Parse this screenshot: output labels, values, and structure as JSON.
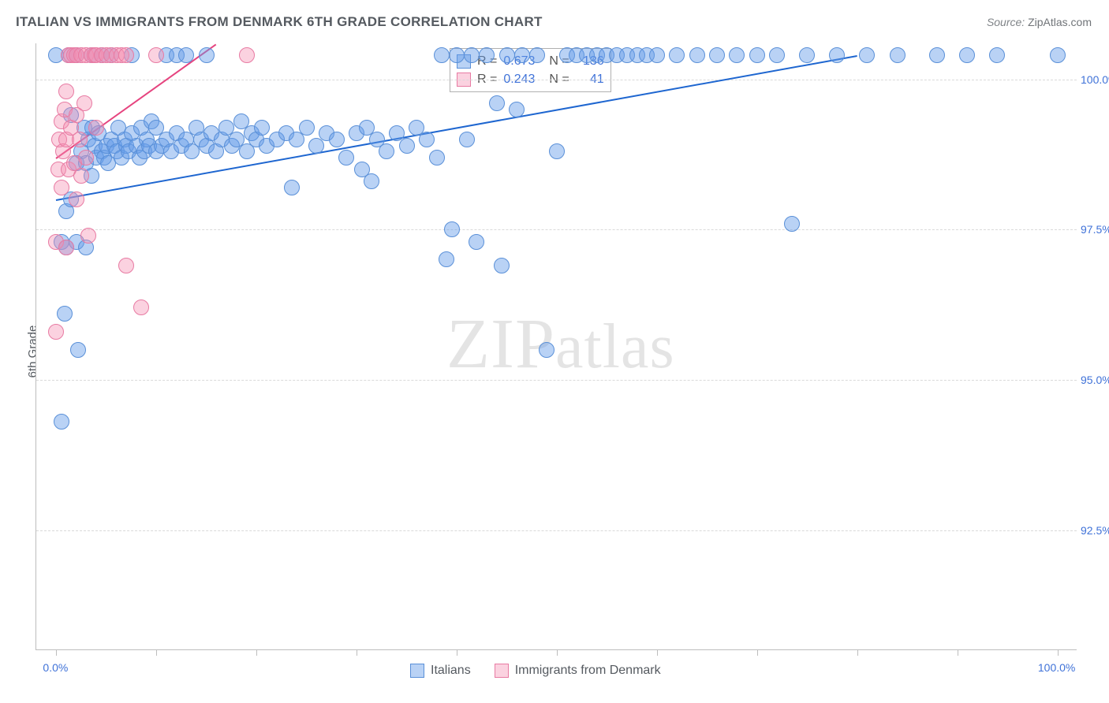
{
  "title": "ITALIAN VS IMMIGRANTS FROM DENMARK 6TH GRADE CORRELATION CHART",
  "source_label": "Source:",
  "source_value": "ZipAtlas.com",
  "y_axis_label": "6th Grade",
  "watermark": "ZIPatlas",
  "colors": {
    "blue_fill": "rgba(99,155,233,0.45)",
    "blue_stroke": "#5a90d8",
    "blue_line": "#1e66d0",
    "pink_fill": "rgba(244,143,177,0.40)",
    "pink_stroke": "#e87ba3",
    "pink_line": "#e6447f",
    "axis_text": "#3f72d8",
    "grid": "#d9d9d9",
    "border": "#bdbdbd",
    "title": "#555a60"
  },
  "chart": {
    "type": "scatter",
    "xlim": [
      -2,
      102
    ],
    "ylim": [
      90.5,
      100.6
    ],
    "point_radius": 10,
    "y_gridlines": [
      92.5,
      95.0,
      97.5,
      100.0
    ],
    "y_tick_labels": [
      "92.5%",
      "95.0%",
      "97.5%",
      "100.0%"
    ],
    "x_ticks": [
      0,
      10,
      20,
      30,
      40,
      50,
      60,
      70,
      80,
      90,
      100
    ],
    "x_tick_labels": {
      "0": "0.0%",
      "100": "100.0%"
    },
    "series": [
      {
        "key": "italians",
        "label": "Italians",
        "color_fill": "rgba(99,155,233,0.45)",
        "color_stroke": "#5a90d8",
        "trend_color": "#1e66d0",
        "R": "0.673",
        "N": "136",
        "trend": {
          "x1": 0,
          "y1": 98.0,
          "x2": 80,
          "y2": 100.4
        },
        "points": [
          [
            0.0,
            100.4
          ],
          [
            0.5,
            94.3
          ],
          [
            0.5,
            97.3
          ],
          [
            0.8,
            96.1
          ],
          [
            1.0,
            97.2
          ],
          [
            1.0,
            97.8
          ],
          [
            1.2,
            100.4
          ],
          [
            1.5,
            98.0
          ],
          [
            1.5,
            99.4
          ],
          [
            2.0,
            97.3
          ],
          [
            2.0,
            98.6
          ],
          [
            2.0,
            100.4
          ],
          [
            2.2,
            95.5
          ],
          [
            2.5,
            98.8
          ],
          [
            2.8,
            99.2
          ],
          [
            3.0,
            97.2
          ],
          [
            3.0,
            98.6
          ],
          [
            3.2,
            99.0
          ],
          [
            3.5,
            98.4
          ],
          [
            3.5,
            100.4
          ],
          [
            3.6,
            99.2
          ],
          [
            3.8,
            98.9
          ],
          [
            4.0,
            98.7
          ],
          [
            4.2,
            99.1
          ],
          [
            4.5,
            98.8
          ],
          [
            4.5,
            100.4
          ],
          [
            4.8,
            98.7
          ],
          [
            5.0,
            98.9
          ],
          [
            5.2,
            98.6
          ],
          [
            5.5,
            99.0
          ],
          [
            5.5,
            100.4
          ],
          [
            5.8,
            98.9
          ],
          [
            6.0,
            98.8
          ],
          [
            6.2,
            99.2
          ],
          [
            6.5,
            98.7
          ],
          [
            6.8,
            99.0
          ],
          [
            7.0,
            98.9
          ],
          [
            7.2,
            98.8
          ],
          [
            7.5,
            99.1
          ],
          [
            7.5,
            100.4
          ],
          [
            8.0,
            98.9
          ],
          [
            8.3,
            98.7
          ],
          [
            8.5,
            99.2
          ],
          [
            8.8,
            98.8
          ],
          [
            9.0,
            99.0
          ],
          [
            9.3,
            98.9
          ],
          [
            9.5,
            99.3
          ],
          [
            10.0,
            98.8
          ],
          [
            10.0,
            99.2
          ],
          [
            10.5,
            98.9
          ],
          [
            11.0,
            99.0
          ],
          [
            11.0,
            100.4
          ],
          [
            11.5,
            98.8
          ],
          [
            12.0,
            99.1
          ],
          [
            12.0,
            100.4
          ],
          [
            12.5,
            98.9
          ],
          [
            13.0,
            99.0
          ],
          [
            13.0,
            100.4
          ],
          [
            13.5,
            98.8
          ],
          [
            14.0,
            99.2
          ],
          [
            14.5,
            99.0
          ],
          [
            15.0,
            98.9
          ],
          [
            15.0,
            100.4
          ],
          [
            15.5,
            99.1
          ],
          [
            16.0,
            98.8
          ],
          [
            16.5,
            99.0
          ],
          [
            17.0,
            99.2
          ],
          [
            17.5,
            98.9
          ],
          [
            18.0,
            99.0
          ],
          [
            18.5,
            99.3
          ],
          [
            19.0,
            98.8
          ],
          [
            19.5,
            99.1
          ],
          [
            20.0,
            99.0
          ],
          [
            20.5,
            99.2
          ],
          [
            21.0,
            98.9
          ],
          [
            22.0,
            99.0
          ],
          [
            23.0,
            99.1
          ],
          [
            23.5,
            98.2
          ],
          [
            24.0,
            99.0
          ],
          [
            25.0,
            99.2
          ],
          [
            26.0,
            98.9
          ],
          [
            27.0,
            99.1
          ],
          [
            28.0,
            99.0
          ],
          [
            29.0,
            98.7
          ],
          [
            30.0,
            99.1
          ],
          [
            30.5,
            98.5
          ],
          [
            31.0,
            99.2
          ],
          [
            31.5,
            98.3
          ],
          [
            32.0,
            99.0
          ],
          [
            33.0,
            98.8
          ],
          [
            34.0,
            99.1
          ],
          [
            35.0,
            98.9
          ],
          [
            36.0,
            99.2
          ],
          [
            37.0,
            99.0
          ],
          [
            38.0,
            98.7
          ],
          [
            38.5,
            100.4
          ],
          [
            39.0,
            97.0
          ],
          [
            39.5,
            97.5
          ],
          [
            40.0,
            100.4
          ],
          [
            41.0,
            99.0
          ],
          [
            41.5,
            100.4
          ],
          [
            42.0,
            97.3
          ],
          [
            43.0,
            100.4
          ],
          [
            44.0,
            99.6
          ],
          [
            44.5,
            96.9
          ],
          [
            45.0,
            100.4
          ],
          [
            46.0,
            99.5
          ],
          [
            46.5,
            100.4
          ],
          [
            48.0,
            100.4
          ],
          [
            49.0,
            95.5
          ],
          [
            50.0,
            98.8
          ],
          [
            51.0,
            100.4
          ],
          [
            52.0,
            100.4
          ],
          [
            53.0,
            100.4
          ],
          [
            54.0,
            100.4
          ],
          [
            55.0,
            100.4
          ],
          [
            56.0,
            100.4
          ],
          [
            57.0,
            100.4
          ],
          [
            58.0,
            100.4
          ],
          [
            59.0,
            100.4
          ],
          [
            60.0,
            100.4
          ],
          [
            62.0,
            100.4
          ],
          [
            64.0,
            100.4
          ],
          [
            66.0,
            100.4
          ],
          [
            68.0,
            100.4
          ],
          [
            70.0,
            100.4
          ],
          [
            72.0,
            100.4
          ],
          [
            73.5,
            97.6
          ],
          [
            75.0,
            100.4
          ],
          [
            78.0,
            100.4
          ],
          [
            81.0,
            100.4
          ],
          [
            84.0,
            100.4
          ],
          [
            88.0,
            100.4
          ],
          [
            91.0,
            100.4
          ],
          [
            94.0,
            100.4
          ],
          [
            100.0,
            100.4
          ]
        ]
      },
      {
        "key": "denmark",
        "label": "Immigrants from Denmark",
        "color_fill": "rgba(244,143,177,0.40)",
        "color_stroke": "#e87ba3",
        "trend_color": "#e6447f",
        "R": "0.243",
        "N": "41",
        "trend": {
          "x1": 0,
          "y1": 98.7,
          "x2": 16,
          "y2": 100.6
        },
        "points": [
          [
            0.0,
            97.3
          ],
          [
            0.0,
            95.8
          ],
          [
            0.2,
            98.5
          ],
          [
            0.3,
            99.0
          ],
          [
            0.5,
            98.2
          ],
          [
            0.5,
            99.3
          ],
          [
            0.7,
            98.8
          ],
          [
            0.8,
            99.5
          ],
          [
            1.0,
            97.2
          ],
          [
            1.0,
            99.0
          ],
          [
            1.0,
            99.8
          ],
          [
            1.2,
            98.5
          ],
          [
            1.2,
            100.4
          ],
          [
            1.5,
            99.2
          ],
          [
            1.5,
            100.4
          ],
          [
            1.8,
            98.6
          ],
          [
            1.8,
            100.4
          ],
          [
            2.0,
            99.4
          ],
          [
            2.0,
            100.4
          ],
          [
            2.0,
            98.0
          ],
          [
            2.3,
            99.0
          ],
          [
            2.5,
            98.4
          ],
          [
            2.5,
            100.4
          ],
          [
            2.8,
            99.6
          ],
          [
            3.0,
            98.7
          ],
          [
            3.0,
            100.4
          ],
          [
            3.2,
            97.4
          ],
          [
            3.5,
            100.4
          ],
          [
            3.8,
            100.4
          ],
          [
            4.0,
            99.2
          ],
          [
            4.0,
            100.4
          ],
          [
            4.5,
            100.4
          ],
          [
            5.0,
            100.4
          ],
          [
            5.5,
            100.4
          ],
          [
            6.0,
            100.4
          ],
          [
            6.5,
            100.4
          ],
          [
            7.0,
            100.4
          ],
          [
            7.0,
            96.9
          ],
          [
            8.5,
            96.2
          ],
          [
            10.0,
            100.4
          ],
          [
            19.0,
            100.4
          ]
        ]
      }
    ]
  },
  "legend": {
    "items": [
      {
        "key": "italians",
        "label": "Italians"
      },
      {
        "key": "denmark",
        "label": "Immigrants from Denmark"
      }
    ]
  }
}
